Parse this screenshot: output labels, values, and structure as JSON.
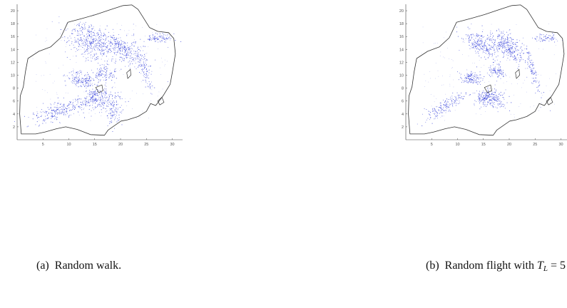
{
  "figures": [
    {
      "id": "a",
      "caption_label": "(a)",
      "caption_text": "Random walk.",
      "chart_data": {
        "type": "scatter",
        "x_ticks": [
          "5",
          "10",
          "15",
          "20",
          "25",
          "30"
        ],
        "y_ticks": [
          "2",
          "4",
          "6",
          "8",
          "10",
          "12",
          "14",
          "16",
          "18",
          "20"
        ],
        "xlim": [
          0,
          32
        ],
        "ylim": [
          0,
          21
        ],
        "point_color": "#1e2bd6",
        "clusters": [
          {
            "cx": 14,
            "cy": 15.2,
            "sx": 2.4,
            "sy": 1.3,
            "rot": -18,
            "n": 420
          },
          {
            "cx": 20,
            "cy": 14.3,
            "sx": 2.2,
            "sy": 0.9,
            "rot": -25,
            "n": 300
          },
          {
            "cx": 24.5,
            "cy": 11.5,
            "sx": 0.5,
            "sy": 2.0,
            "rot": 20,
            "n": 120
          },
          {
            "cx": 12.3,
            "cy": 9.4,
            "sx": 1.5,
            "sy": 0.6,
            "rot": -5,
            "n": 170
          },
          {
            "cx": 16.8,
            "cy": 10.3,
            "sx": 1.1,
            "sy": 0.7,
            "rot": 0,
            "n": 110
          },
          {
            "cx": 14.8,
            "cy": 6.7,
            "sx": 1.0,
            "sy": 0.6,
            "rot": 10,
            "n": 120
          },
          {
            "cx": 8.5,
            "cy": 4.6,
            "sx": 3.0,
            "sy": 0.7,
            "rot": 12,
            "n": 260
          },
          {
            "cx": 17.5,
            "cy": 6.0,
            "sx": 1.6,
            "sy": 1.0,
            "rot": 0,
            "n": 160
          },
          {
            "cx": 27.5,
            "cy": 15.8,
            "sx": 1.3,
            "sy": 0.4,
            "rot": 0,
            "n": 90
          },
          {
            "cx": 18.5,
            "cy": 3.6,
            "sx": 0.7,
            "sy": 0.9,
            "rot": 0,
            "n": 60
          }
        ]
      }
    },
    {
      "id": "b",
      "caption_label": "(b)",
      "caption_text_prefix": "Random flight with",
      "caption_math_var": "T",
      "caption_math_sub": "L",
      "caption_math_rest": "= 5",
      "chart_data": {
        "type": "scatter",
        "x_ticks": [
          "5",
          "10",
          "15",
          "20",
          "25",
          "30"
        ],
        "y_ticks": [
          "2",
          "4",
          "6",
          "8",
          "10",
          "12",
          "14",
          "16",
          "18",
          "20"
        ],
        "xlim": [
          0,
          32
        ],
        "ylim": [
          0,
          21
        ],
        "point_color": "#1e2bd6",
        "clusters": [
          {
            "cx": 14.5,
            "cy": 14.8,
            "sx": 2.0,
            "sy": 0.8,
            "rot": -22,
            "n": 260
          },
          {
            "cx": 19.5,
            "cy": 14.5,
            "sx": 1.8,
            "sy": 0.8,
            "rot": -30,
            "n": 300
          },
          {
            "cx": 24.5,
            "cy": 10.8,
            "sx": 0.4,
            "sy": 2.0,
            "rot": 22,
            "n": 110
          },
          {
            "cx": 12.5,
            "cy": 9.6,
            "sx": 1.1,
            "sy": 0.5,
            "rot": -5,
            "n": 130
          },
          {
            "cx": 17.5,
            "cy": 10.6,
            "sx": 0.9,
            "sy": 0.5,
            "rot": 0,
            "n": 90
          },
          {
            "cx": 15.2,
            "cy": 6.6,
            "sx": 1.0,
            "sy": 0.5,
            "rot": 10,
            "n": 110
          },
          {
            "cx": 7.5,
            "cy": 5.2,
            "sx": 2.3,
            "sy": 0.5,
            "rot": 25,
            "n": 170
          },
          {
            "cx": 16.8,
            "cy": 6.2,
            "sx": 1.4,
            "sy": 0.7,
            "rot": 0,
            "n": 150
          },
          {
            "cx": 27.0,
            "cy": 15.8,
            "sx": 1.3,
            "sy": 0.3,
            "rot": 0,
            "n": 70
          }
        ]
      }
    }
  ]
}
